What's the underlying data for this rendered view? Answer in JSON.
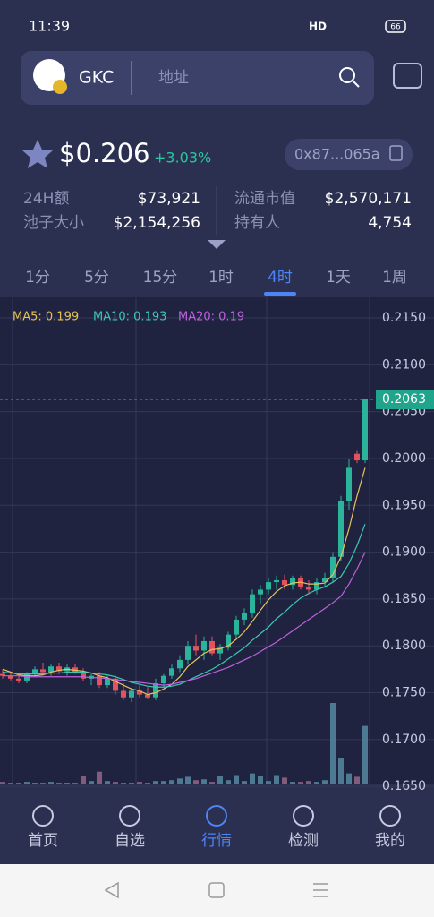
{
  "status_bar": {
    "time": "11:39",
    "network": "HD",
    "battery": "66"
  },
  "header": {
    "token": "GKC",
    "search_placeholder": "地址"
  },
  "price": {
    "value": "$0.206",
    "change": "+3.03%",
    "address": "0x87...065a"
  },
  "stats": [
    {
      "label": "24H额",
      "value": "$73,921"
    },
    {
      "label": "流通市值",
      "value": "$2,570,171"
    },
    {
      "label": "池子大小",
      "value": "$2,154,256"
    },
    {
      "label": "持有人",
      "value": "4,754"
    }
  ],
  "tabs": {
    "items": [
      "1分",
      "5分",
      "15分",
      "1时",
      "4时",
      "1天",
      "1周"
    ],
    "active": 4
  },
  "chart_data": {
    "type": "candlestick",
    "up_color": "#2bb39b",
    "down_color": "#e0535f",
    "volume_color": "#5a8fa8",
    "volume_down_color": "#9a6a8c",
    "ylim": [
      0.1653,
      0.2172
    ],
    "yticks": [
      {
        "value": 0.215,
        "label": "0.2150"
      },
      {
        "value": 0.21,
        "label": "0.2100"
      },
      {
        "value": 0.205,
        "label": "0.2050"
      },
      {
        "value": 0.2,
        "label": "0.2000"
      },
      {
        "value": 0.195,
        "label": "0.1950"
      },
      {
        "value": 0.19,
        "label": "0.1900"
      },
      {
        "value": 0.185,
        "label": "0.1850"
      },
      {
        "value": 0.18,
        "label": "0.1800"
      },
      {
        "value": 0.175,
        "label": "0.1750"
      },
      {
        "value": 0.17,
        "label": "0.1700"
      },
      {
        "value": 0.165,
        "label": "0.1650"
      }
    ],
    "last_price": 0.2063,
    "candles": [
      [
        0.177,
        0.1775,
        0.1765,
        0.1768
      ],
      [
        0.1768,
        0.1772,
        0.1763,
        0.1765
      ],
      [
        0.1765,
        0.177,
        0.176,
        0.1763
      ],
      [
        0.1763,
        0.1772,
        0.176,
        0.177
      ],
      [
        0.177,
        0.1778,
        0.1767,
        0.1775
      ],
      [
        0.1775,
        0.1782,
        0.177,
        0.1772
      ],
      [
        0.1772,
        0.178,
        0.1768,
        0.1778
      ],
      [
        0.1778,
        0.1782,
        0.177,
        0.1773
      ],
      [
        0.1773,
        0.178,
        0.1768,
        0.1777
      ],
      [
        0.1777,
        0.1781,
        0.177,
        0.1772
      ],
      [
        0.1772,
        0.1776,
        0.1762,
        0.1765
      ],
      [
        0.1765,
        0.177,
        0.1758,
        0.1768
      ],
      [
        0.1768,
        0.1772,
        0.1755,
        0.1758
      ],
      [
        0.1758,
        0.1768,
        0.1755,
        0.1765
      ],
      [
        0.1765,
        0.1768,
        0.1748,
        0.1752
      ],
      [
        0.1752,
        0.176,
        0.1742,
        0.1745
      ],
      [
        0.1745,
        0.1755,
        0.174,
        0.1752
      ],
      [
        0.1752,
        0.1758,
        0.1745,
        0.1748
      ],
      [
        0.1748,
        0.1756,
        0.1743,
        0.1745
      ],
      [
        0.1745,
        0.1765,
        0.1742,
        0.176
      ],
      [
        0.176,
        0.177,
        0.1755,
        0.1768
      ],
      [
        0.1768,
        0.178,
        0.1765,
        0.1776
      ],
      [
        0.1776,
        0.179,
        0.1772,
        0.1785
      ],
      [
        0.1785,
        0.1805,
        0.178,
        0.18
      ],
      [
        0.18,
        0.1812,
        0.179,
        0.1795
      ],
      [
        0.1795,
        0.181,
        0.1785,
        0.1805
      ],
      [
        0.1805,
        0.181,
        0.179,
        0.1792
      ],
      [
        0.1792,
        0.1802,
        0.1785,
        0.1798
      ],
      [
        0.1798,
        0.1815,
        0.1795,
        0.1812
      ],
      [
        0.1812,
        0.1832,
        0.1808,
        0.1828
      ],
      [
        0.1828,
        0.184,
        0.1822,
        0.1835
      ],
      [
        0.1835,
        0.186,
        0.183,
        0.1855
      ],
      [
        0.1855,
        0.1865,
        0.1845,
        0.186
      ],
      [
        0.186,
        0.1872,
        0.1855,
        0.1868
      ],
      [
        0.1868,
        0.1875,
        0.186,
        0.187
      ],
      [
        0.187,
        0.1876,
        0.186,
        0.1865
      ],
      [
        0.1865,
        0.1875,
        0.186,
        0.1872
      ],
      [
        0.1872,
        0.1875,
        0.186,
        0.1863
      ],
      [
        0.1863,
        0.187,
        0.1855,
        0.186
      ],
      [
        0.186,
        0.1872,
        0.1855,
        0.1868
      ],
      [
        0.1868,
        0.1878,
        0.1862,
        0.1872
      ],
      [
        0.1872,
        0.19,
        0.1868,
        0.1895
      ],
      [
        0.1895,
        0.196,
        0.189,
        0.1955
      ],
      [
        0.1955,
        0.2,
        0.1945,
        0.199
      ],
      [
        0.2005,
        0.2008,
        0.1995,
        0.1998
      ],
      [
        0.1998,
        0.2063,
        0.1995,
        0.2063
      ]
    ],
    "volumes": [
      2,
      1,
      1,
      2,
      1,
      1,
      2,
      1,
      1,
      1,
      9,
      3,
      14,
      3,
      2,
      1,
      1,
      2,
      1,
      3,
      3,
      4,
      6,
      8,
      4,
      5,
      2,
      9,
      4,
      10,
      3,
      12,
      9,
      3,
      10,
      7,
      2,
      2,
      3,
      2,
      4,
      95,
      30,
      12,
      8,
      68
    ],
    "series": [
      {
        "name": "MA5: 0.199",
        "color": "#e6c15a",
        "values": [
          0.1775,
          0.1772,
          0.1769,
          0.1768,
          0.1768,
          0.1769,
          0.1772,
          0.1774,
          0.1775,
          0.1774,
          0.1773,
          0.1771,
          0.1768,
          0.1766,
          0.1762,
          0.1758,
          0.1754,
          0.1752,
          0.1748,
          0.175,
          0.1754,
          0.1759,
          0.1767,
          0.1778,
          0.1785,
          0.1792,
          0.1796,
          0.1797,
          0.18,
          0.1807,
          0.1815,
          0.1826,
          0.1838,
          0.1849,
          0.1858,
          0.1864,
          0.1867,
          0.1868,
          0.1866,
          0.1866,
          0.1867,
          0.1876,
          0.1895,
          0.1925,
          0.196,
          0.199
        ]
      },
      {
        "name": "MA10: 0.193",
        "color": "#3ec7b0",
        "values": [
          0.1772,
          0.1771,
          0.177,
          0.177,
          0.177,
          0.177,
          0.1771,
          0.1771,
          0.1772,
          0.1772,
          0.1772,
          0.1771,
          0.177,
          0.1769,
          0.1767,
          0.1764,
          0.1761,
          0.1759,
          0.1757,
          0.1756,
          0.1756,
          0.1757,
          0.1759,
          0.1763,
          0.1767,
          0.1771,
          0.1775,
          0.178,
          0.1786,
          0.1792,
          0.1798,
          0.1806,
          0.1813,
          0.182,
          0.1829,
          0.1836,
          0.1844,
          0.1851,
          0.1856,
          0.186,
          0.1863,
          0.1868,
          0.1874,
          0.1888,
          0.1907,
          0.193
        ]
      },
      {
        "name": "MA20: 0.19",
        "color": "#c060e0",
        "values": [
          0.1768,
          0.1768,
          0.1768,
          0.1767,
          0.1767,
          0.1767,
          0.1767,
          0.1767,
          0.1767,
          0.1767,
          0.1767,
          0.1766,
          0.1766,
          0.1765,
          0.1764,
          0.1763,
          0.1762,
          0.1761,
          0.176,
          0.1759,
          0.1758,
          0.1759,
          0.1761,
          0.1763,
          0.1765,
          0.1768,
          0.1771,
          0.1774,
          0.1777,
          0.1781,
          0.1785,
          0.1789,
          0.1794,
          0.1799,
          0.1804,
          0.181,
          0.1816,
          0.1822,
          0.1828,
          0.1834,
          0.184,
          0.1846,
          0.1853,
          0.1866,
          0.1882,
          0.19
        ]
      }
    ]
  },
  "bottom_nav": {
    "items": [
      "首页",
      "自选",
      "行情",
      "检测",
      "我的"
    ],
    "active": 2
  }
}
